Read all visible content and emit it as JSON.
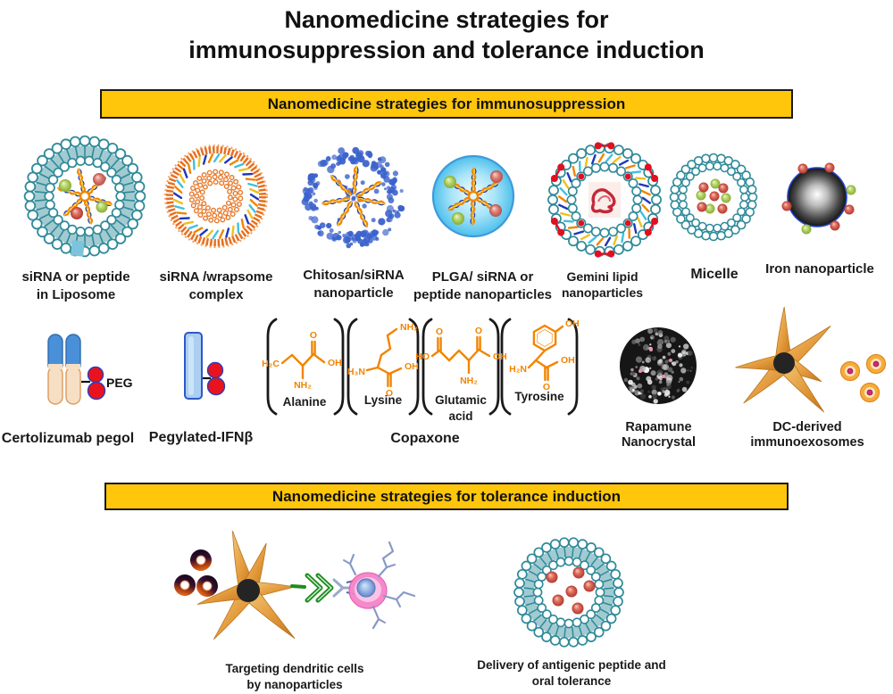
{
  "title": {
    "line1": "Nanomedicine strategies for",
    "line2": "immunosuppression and tolerance induction"
  },
  "banners": {
    "immunosuppression": "Nanomedicine strategies for immunosuppression",
    "tolerance": "Nanomedicine strategies for tolerance induction"
  },
  "row1_labels": [
    {
      "line1": "siRNA or peptide",
      "line2": "in Liposome"
    },
    {
      "line1": "siRNA /wrapsome",
      "line2": "complex"
    },
    {
      "line1": "Chitosan/siRNA",
      "line2": "nanoparticle"
    },
    {
      "line1": "PLGA/ siRNA or",
      "line2": "peptide nanoparticles"
    },
    {
      "line1": "Gemini lipid",
      "line2": "nanoparticles"
    },
    {
      "line1": "Micelle",
      "line2": ""
    },
    {
      "line1": "Iron nanoparticle",
      "line2": ""
    }
  ],
  "row2_labels": [
    {
      "line1": "Certolizumab pegol",
      "line2": ""
    },
    {
      "line1": "Pegylated-IFNβ",
      "line2": ""
    },
    {
      "line1": "Copaxone",
      "line2": ""
    },
    {
      "line1": "Rapamune",
      "line2": "Nanocrystal"
    },
    {
      "line1": "DC-derived",
      "line2": "immunoexosomes"
    }
  ],
  "peg_label": "PEG",
  "copaxone_structures": [
    {
      "name1": "Alanine",
      "name2": "",
      "labels": [
        "H₂C",
        "O",
        "OH",
        "NH₂"
      ]
    },
    {
      "name1": "Lysine",
      "name2": "",
      "labels": [
        "NH₂",
        "H₃N",
        "O",
        "OH"
      ]
    },
    {
      "name1": "Glutamic",
      "name2": "acid",
      "labels": [
        "HO",
        "O",
        "O",
        "OH",
        "NH₂"
      ]
    },
    {
      "name1": "Tyrosine",
      "name2": "",
      "labels": [
        "OH",
        "H₂N",
        "O",
        "OH"
      ]
    }
  ],
  "tolerance_labels": [
    {
      "line1": "Targeting dendritic cells",
      "line2": "by nanoparticles"
    },
    {
      "line1": "Delivery of antigenic  peptide and",
      "line2": "oral tolerance"
    }
  ],
  "colors": {
    "banner_bg": "#FFC60B",
    "teal": "#2F8A99",
    "orange": "#F28500",
    "chitosan_blue": "#3B62CC",
    "red": "#E8131F",
    "green_sphere": "#9CC04C",
    "red_sphere": "#C84848",
    "dc_orange": "#E8A040",
    "tcell_pink": "#F583CA"
  }
}
